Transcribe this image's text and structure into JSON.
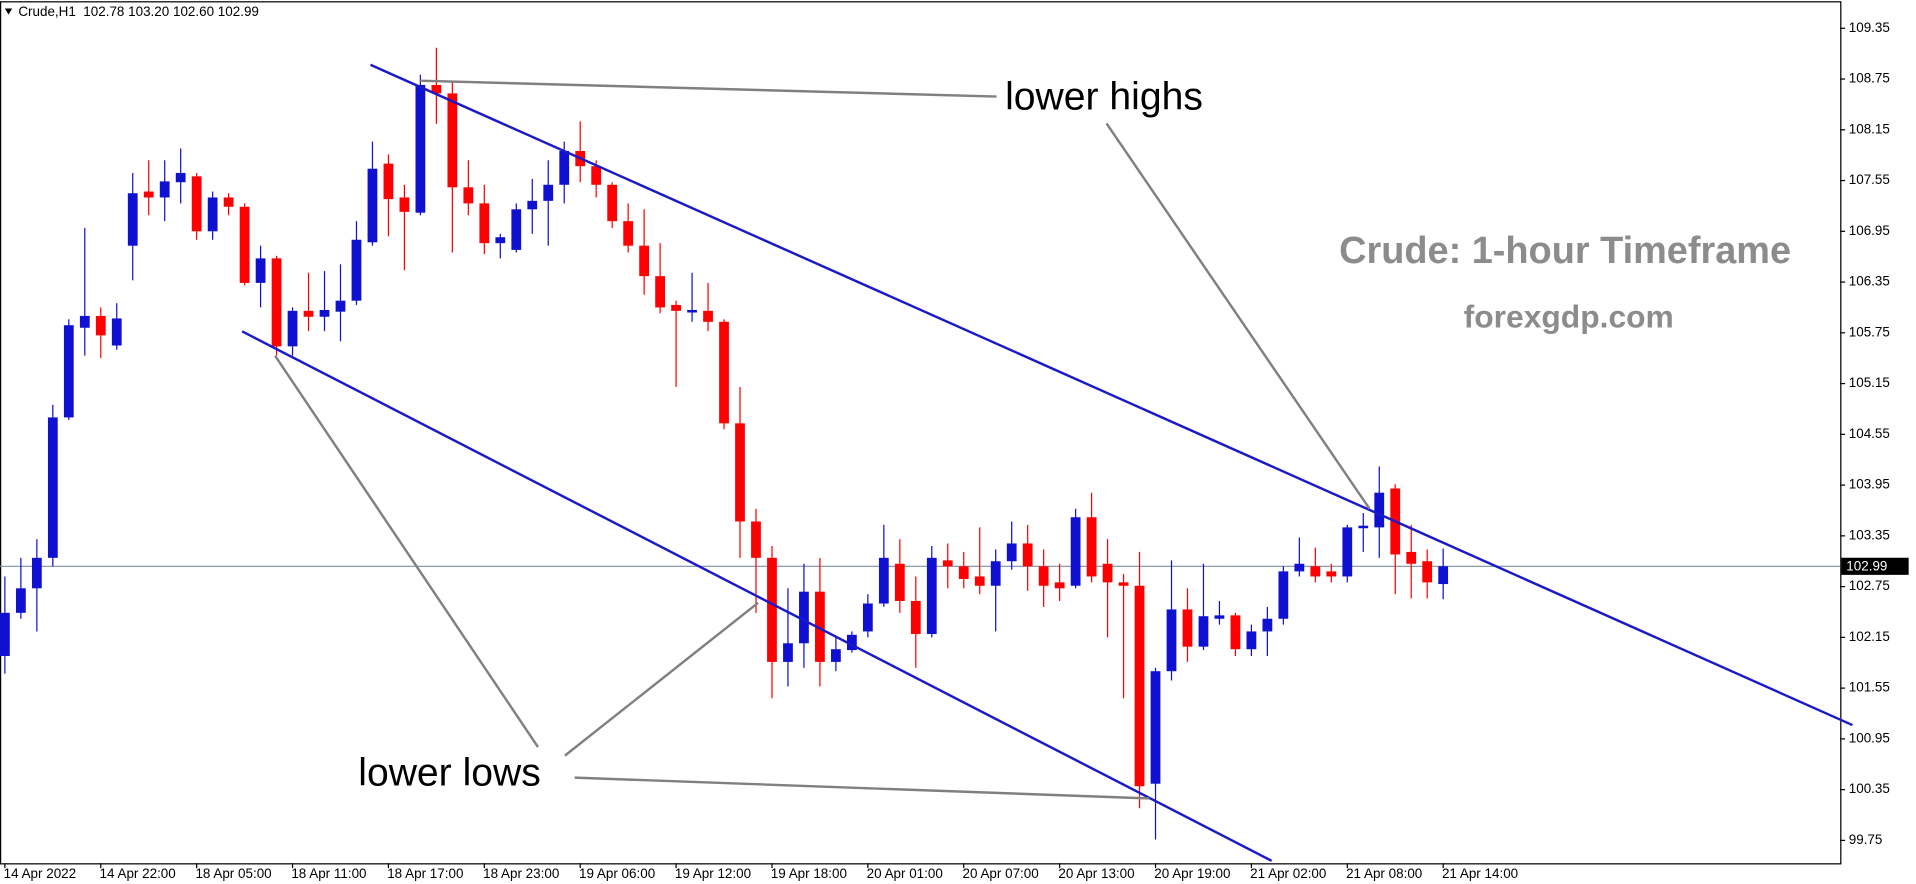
{
  "chart_data": {
    "type": "candlestick",
    "symbol_info": "Crude,H1  102.78 103.20 102.60 102.99",
    "annotations": [
      "lower highs",
      "lower lows"
    ],
    "watermark": [
      "Crude: 1-hour Timeframe",
      "forexgdp.com"
    ],
    "categories": [
      "14 Apr 2022",
      null,
      null,
      null,
      null,
      null,
      "14 Apr 22:00",
      null,
      null,
      null,
      null,
      null,
      "18 Apr 05:00",
      null,
      null,
      null,
      null,
      null,
      "18 Apr 11:00",
      null,
      null,
      null,
      null,
      null,
      "18 Apr 17:00",
      null,
      null,
      null,
      null,
      null,
      "18 Apr 23:00",
      null,
      null,
      null,
      null,
      null,
      "19 Apr 06:00",
      null,
      null,
      null,
      null,
      null,
      "19 Apr 12:00",
      null,
      null,
      null,
      null,
      null,
      "19 Apr 18:00",
      null,
      null,
      null,
      null,
      null,
      "20 Apr 01:00",
      null,
      null,
      null,
      null,
      null,
      "20 Apr 07:00",
      null,
      null,
      null,
      null,
      null,
      "20 Apr 13:00",
      null,
      null,
      null,
      null,
      null,
      "20 Apr 19:00",
      null,
      null,
      null,
      null,
      null,
      "21 Apr 02:00",
      null,
      null,
      null,
      null,
      null,
      "21 Apr 08:00",
      null,
      null,
      null,
      null,
      null,
      "21 Apr 14:00"
    ],
    "open": [
      101.93,
      102.44,
      102.73,
      103.09,
      104.75,
      105.81,
      105.95,
      105.6,
      106.78,
      107.42,
      107.35,
      107.53,
      107.6,
      106.95,
      107.35,
      107.24,
      106.34,
      106.63,
      105.59,
      106.01,
      105.94,
      106.0,
      106.13,
      106.82,
      107.75,
      107.35,
      107.17,
      108.68,
      108.58,
      107.47,
      107.28,
      106.81,
      106.73,
      107.21,
      107.31,
      107.5,
      107.9,
      107.72,
      107.5,
      107.07,
      106.78,
      106.42,
      106.08,
      105.99,
      106.01,
      105.88,
      104.68,
      103.52,
      103.09,
      101.86,
      102.08,
      102.69,
      101.86,
      102.0,
      102.22,
      102.55,
      103.02,
      102.58,
      102.19,
      103.06,
      102.99,
      102.87,
      102.76,
      103.05,
      103.26,
      102.99,
      102.8,
      102.76,
      103.57,
      103.02,
      102.8,
      102.76,
      100.42,
      101.75,
      102.48,
      102.04,
      102.37,
      102.41,
      102.01,
      102.22,
      102.37,
      102.93,
      102.99,
      102.93,
      102.87,
      103.44,
      103.45,
      103.91,
      103.16,
      103.05,
      102.78
    ],
    "high": [
      102.87,
      103.09,
      103.31,
      104.9,
      105.91,
      106.99,
      106.05,
      106.1,
      107.64,
      107.79,
      107.79,
      107.93,
      107.64,
      107.42,
      107.4,
      107.28,
      106.78,
      106.66,
      106.05,
      106.46,
      106.48,
      106.56,
      107.07,
      108.01,
      107.86,
      107.5,
      108.8,
      109.12,
      108.73,
      107.79,
      107.5,
      106.92,
      107.28,
      107.57,
      107.79,
      108.01,
      108.25,
      107.79,
      107.53,
      107.28,
      107.21,
      106.81,
      106.13,
      106.46,
      106.34,
      105.91,
      105.11,
      103.67,
      103.23,
      102.73,
      103.02,
      103.09,
      102.15,
      102.22,
      102.66,
      103.48,
      103.31,
      102.87,
      103.23,
      103.26,
      103.16,
      103.45,
      103.19,
      103.52,
      103.48,
      103.19,
      103.02,
      103.67,
      103.86,
      103.31,
      102.9,
      103.16,
      101.79,
      103.06,
      102.73,
      103.02,
      102.58,
      102.44,
      102.3,
      102.51,
      102.99,
      103.33,
      103.21,
      103.02,
      103.48,
      103.62,
      104.17,
      103.96,
      103.48,
      103.19,
      103.2
    ],
    "low": [
      101.72,
      102.37,
      102.22,
      102.99,
      104.72,
      105.48,
      105.45,
      105.55,
      106.37,
      107.14,
      107.07,
      107.28,
      106.85,
      106.85,
      107.14,
      106.31,
      106.05,
      105.48,
      105.48,
      105.77,
      105.77,
      105.65,
      106.08,
      106.78,
      106.89,
      106.49,
      107.14,
      108.22,
      106.7,
      107.14,
      106.68,
      106.63,
      106.7,
      106.92,
      106.78,
      107.28,
      107.53,
      107.35,
      106.99,
      106.7,
      106.2,
      105.98,
      105.11,
      105.88,
      105.77,
      104.61,
      103.09,
      102.44,
      101.43,
      101.57,
      101.79,
      101.57,
      101.75,
      101.97,
      102.15,
      102.51,
      102.44,
      101.79,
      102.15,
      102.73,
      102.73,
      102.66,
      102.22,
      102.95,
      102.7,
      102.51,
      102.58,
      102.73,
      102.8,
      102.15,
      101.43,
      100.13,
      99.76,
      101.64,
      101.86,
      102.0,
      102.3,
      101.93,
      101.93,
      101.93,
      102.3,
      102.87,
      102.8,
      102.8,
      102.8,
      103.16,
      103.09,
      102.66,
      102.61,
      102.61,
      102.6
    ],
    "close": [
      102.44,
      102.73,
      103.09,
      104.75,
      105.84,
      105.95,
      105.72,
      105.92,
      107.4,
      107.35,
      107.54,
      107.64,
      106.95,
      107.35,
      107.24,
      106.34,
      106.63,
      105.59,
      106.01,
      105.94,
      106.02,
      106.13,
      106.85,
      107.69,
      107.33,
      107.18,
      108.68,
      108.58,
      107.47,
      107.28,
      106.81,
      106.88,
      107.21,
      107.31,
      107.5,
      107.9,
      107.72,
      107.5,
      107.07,
      106.78,
      106.42,
      106.05,
      106.01,
      106.02,
      105.88,
      104.68,
      103.52,
      103.09,
      101.86,
      102.08,
      102.69,
      101.86,
      102.01,
      102.18,
      102.55,
      103.09,
      102.58,
      102.19,
      103.09,
      102.99,
      102.84,
      102.76,
      103.05,
      103.26,
      102.99,
      102.76,
      102.73,
      103.57,
      102.87,
      102.8,
      102.76,
      100.39,
      101.75,
      102.48,
      102.04,
      102.4,
      102.41,
      102.01,
      102.22,
      102.37,
      102.93,
      103.02,
      102.87,
      102.87,
      103.45,
      103.47,
      103.86,
      103.13,
      103.02,
      102.8,
      102.99
    ],
    "up_color": "#1010d0",
    "down_color": "#ff0000",
    "current_price": 102.99,
    "ylim": [
      99.48,
      109.67
    ],
    "yticks": [
      109.35,
      108.75,
      108.15,
      107.55,
      106.95,
      106.35,
      105.75,
      105.15,
      104.55,
      103.95,
      103.35,
      102.75,
      102.15,
      101.55,
      100.95,
      100.35,
      99.75
    ]
  }
}
